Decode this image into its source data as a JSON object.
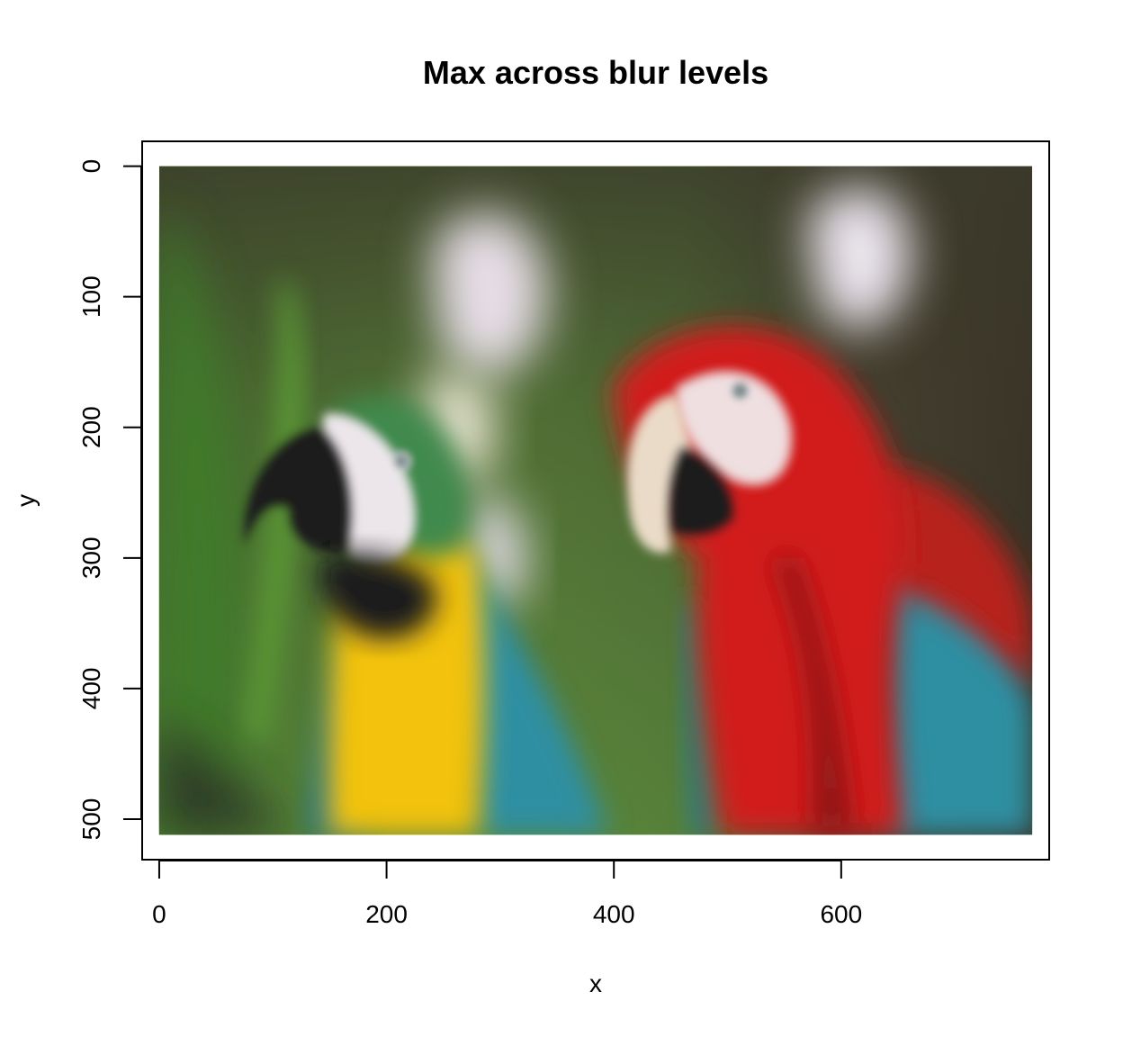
{
  "chart_data": {
    "type": "heatmap",
    "title": "Max across blur levels",
    "xlabel": "x",
    "ylabel": "y",
    "xlim": [
      -15,
      783
    ],
    "ylim": [
      531,
      -19
    ],
    "x_reversed": false,
    "y_reversed": true,
    "image_extent": {
      "x": [
        0,
        768
      ],
      "y": [
        0,
        512
      ]
    },
    "x_ticks": [
      0,
      200,
      400,
      600
    ],
    "y_ticks": [
      0,
      100,
      200,
      300,
      400,
      500
    ],
    "content": "image of two macaws (blue-and-yellow, red-and-green) against a blurred green and brown background",
    "palette": {
      "background_green": "#4f7f2e",
      "background_dark": "#3b3328",
      "red_macaw": "#d21c1e",
      "yellow_chest": "#f2c20f",
      "blue_wing": "#2f8fa2",
      "beak_dark": "#1d1d1b",
      "face_white": "#ece6ea"
    }
  }
}
